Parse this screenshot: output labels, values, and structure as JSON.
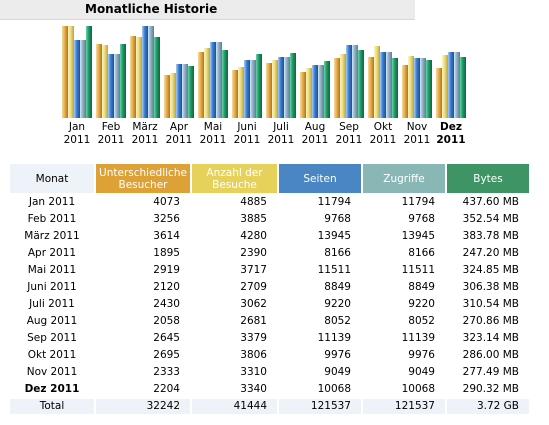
{
  "title": "Monatliche Historie",
  "colors": {
    "visitors": "#E0A33E",
    "visits": "#E9D974",
    "pages": "#4A86C4",
    "hits": "#8DB8B8",
    "bytes": "#3F8F63",
    "header_bg": "#EEF3F9",
    "title_bg": "#ECECEC"
  },
  "chart_data": {
    "type": "bar",
    "categories": [
      "Jan 2011",
      "Feb 2011",
      "März 2011",
      "Apr 2011",
      "Mai 2011",
      "Juni 2011",
      "Juli 2011",
      "Aug 2011",
      "Sep 2011",
      "Okt 2011",
      "Nov 2011",
      "Dez 2011"
    ],
    "labels_top": [
      "Jan",
      "Feb",
      "März",
      "Apr",
      "Mai",
      "Juni",
      "Juli",
      "Aug",
      "Sep",
      "Okt",
      "Nov",
      "Dez"
    ],
    "labels_bottom": [
      "2011",
      "2011",
      "2011",
      "2011",
      "2011",
      "2011",
      "2011",
      "2011",
      "2011",
      "2011",
      "2011",
      "2011"
    ],
    "highlight_index": 11,
    "series": [
      {
        "key": "visitors",
        "values": [
          4073,
          3256,
          3614,
          1895,
          2919,
          2120,
          2430,
          2058,
          2645,
          2695,
          2333,
          2204
        ]
      },
      {
        "key": "visits",
        "values": [
          4885,
          3885,
          4280,
          2390,
          3717,
          2709,
          3062,
          2681,
          3379,
          3806,
          3310,
          3340
        ]
      },
      {
        "key": "pages",
        "values": [
          11794,
          9768,
          13945,
          8166,
          11511,
          8849,
          9220,
          8052,
          11139,
          9976,
          9049,
          10068
        ]
      },
      {
        "key": "hits",
        "values": [
          11794,
          9768,
          13945,
          8166,
          11511,
          8849,
          9220,
          8052,
          11139,
          9976,
          9049,
          10068
        ]
      },
      {
        "key": "bytes",
        "values": [
          437.6,
          352.54,
          383.78,
          247.2,
          324.85,
          306.38,
          310.54,
          270.86,
          323.14,
          286.0,
          277.49,
          290.32
        ]
      }
    ]
  },
  "table": {
    "headers": {
      "month": "Monat",
      "visitors": "Unterschiedliche Besucher",
      "visits": "Anzahl der Besuche",
      "pages": "Seiten",
      "hits": "Zugriffe",
      "bytes": "Bytes"
    },
    "rows": [
      {
        "month": "Jan 2011",
        "visitors": "4073",
        "visits": "4885",
        "pages": "11794",
        "hits": "11794",
        "bytes": "437.60 MB"
      },
      {
        "month": "Feb 2011",
        "visitors": "3256",
        "visits": "3885",
        "pages": "9768",
        "hits": "9768",
        "bytes": "352.54 MB"
      },
      {
        "month": "März 2011",
        "visitors": "3614",
        "visits": "4280",
        "pages": "13945",
        "hits": "13945",
        "bytes": "383.78 MB"
      },
      {
        "month": "Apr 2011",
        "visitors": "1895",
        "visits": "2390",
        "pages": "8166",
        "hits": "8166",
        "bytes": "247.20 MB"
      },
      {
        "month": "Mai 2011",
        "visitors": "2919",
        "visits": "3717",
        "pages": "11511",
        "hits": "11511",
        "bytes": "324.85 MB"
      },
      {
        "month": "Juni 2011",
        "visitors": "2120",
        "visits": "2709",
        "pages": "8849",
        "hits": "8849",
        "bytes": "306.38 MB"
      },
      {
        "month": "Juli 2011",
        "visitors": "2430",
        "visits": "3062",
        "pages": "9220",
        "hits": "9220",
        "bytes": "310.54 MB"
      },
      {
        "month": "Aug 2011",
        "visitors": "2058",
        "visits": "2681",
        "pages": "8052",
        "hits": "8052",
        "bytes": "270.86 MB"
      },
      {
        "month": "Sep 2011",
        "visitors": "2645",
        "visits": "3379",
        "pages": "11139",
        "hits": "11139",
        "bytes": "323.14 MB"
      },
      {
        "month": "Okt 2011",
        "visitors": "2695",
        "visits": "3806",
        "pages": "9976",
        "hits": "9976",
        "bytes": "286.00 MB"
      },
      {
        "month": "Nov 2011",
        "visitors": "2333",
        "visits": "3310",
        "pages": "9049",
        "hits": "9049",
        "bytes": "277.49 MB"
      },
      {
        "month": "Dez 2011",
        "visitors": "2204",
        "visits": "3340",
        "pages": "10068",
        "hits": "10068",
        "bytes": "290.32 MB",
        "bold": true
      }
    ],
    "total": {
      "month": "Total",
      "visitors": "32242",
      "visits": "41444",
      "pages": "121537",
      "hits": "121537",
      "bytes": "3.72 GB"
    }
  }
}
